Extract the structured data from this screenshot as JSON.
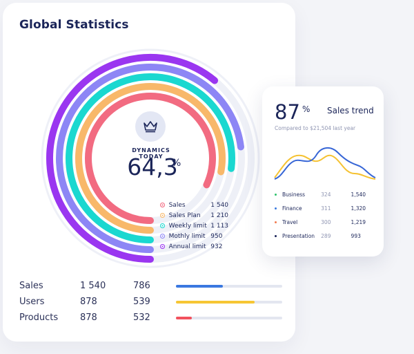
{
  "title": "Global Statistics",
  "dashboard": {
    "label": "DYNAMICS TODAY",
    "value": "64,3",
    "unit": "%",
    "icon": "crown-icon",
    "rings": [
      {
        "name": "Sales",
        "value": "1 540",
        "color": "#f26b81",
        "fill": 0.82
      },
      {
        "name": "Sales Plan",
        "value": "1 210",
        "color": "#f8b86a",
        "fill": 0.78
      },
      {
        "name": "Weekly limit",
        "value": "1 113",
        "color": "#1ad8d0",
        "fill": 0.77
      },
      {
        "name": "Mothly limit",
        "value": "950",
        "color": "#8d86f5",
        "fill": 0.73
      },
      {
        "name": "Annual limit",
        "value": "932",
        "color": "#9a36f0",
        "fill": 0.61
      }
    ]
  },
  "table": [
    {
      "name": "Sales",
      "v1": "1 540",
      "v2": "786",
      "color": "#3a78e0",
      "progress": 0.44
    },
    {
      "name": "Users",
      "v1": "878",
      "v2": "539",
      "color": "#f6c634",
      "progress": 0.74
    },
    {
      "name": "Products",
      "v1": "878",
      "v2": "532",
      "color": "#f2525e",
      "progress": 0.15
    }
  ],
  "trend": {
    "value": "87",
    "unit": "%",
    "title": "Sales trend",
    "subtitle": "Compared to $21,504 last year",
    "series_colors": [
      "#3766d6",
      "#f5c232"
    ],
    "items": [
      {
        "name": "Business",
        "v1": "324",
        "v2": "1,540",
        "color": "#2cc36b"
      },
      {
        "name": "Finance",
        "v1": "311",
        "v2": "1,320",
        "color": "#3a7ae0"
      },
      {
        "name": "Travel",
        "v1": "300",
        "v2": "1,219",
        "color": "#f27b50"
      },
      {
        "name": "Presentation",
        "v1": "289",
        "v2": "993",
        "color": "#1b2559"
      }
    ]
  }
}
